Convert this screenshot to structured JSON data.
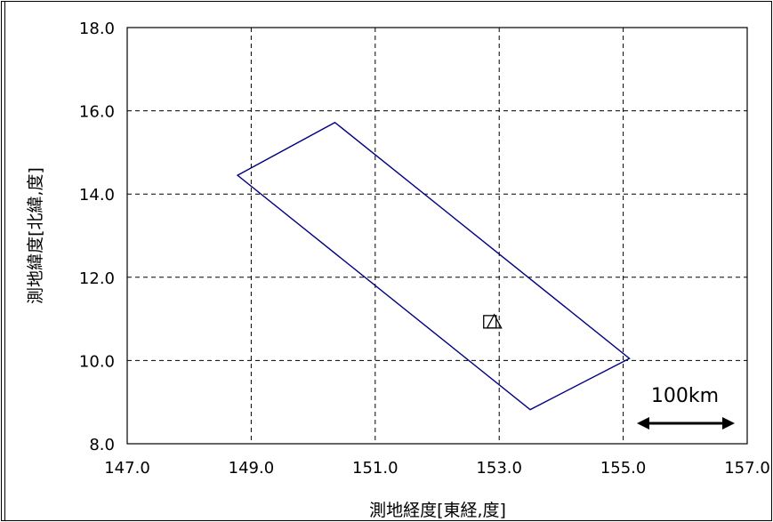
{
  "chart_data": {
    "type": "scatter",
    "title": "",
    "xlabel": "測地経度[東経,度]",
    "ylabel": "測地緯度[北緯,度]",
    "xlim": [
      147.0,
      157.0
    ],
    "ylim": [
      8.0,
      18.0
    ],
    "xticks": [
      "147.0",
      "149.0",
      "151.0",
      "153.0",
      "155.0",
      "157.0"
    ],
    "yticks": [
      "8.0",
      "10.0",
      "12.0",
      "14.0",
      "16.0",
      "18.0"
    ],
    "grid": true,
    "polygon": {
      "color": "#000080",
      "points": [
        [
          148.78,
          14.45
        ],
        [
          150.35,
          15.72
        ],
        [
          155.1,
          10.05
        ],
        [
          153.5,
          8.82
        ]
      ]
    },
    "markers": [
      {
        "shape": "square",
        "x": 152.85,
        "y": 10.93
      },
      {
        "shape": "triangle",
        "x": 152.92,
        "y": 10.93
      }
    ],
    "scale_bar": {
      "label": "100km",
      "position": "bottom-right"
    }
  }
}
